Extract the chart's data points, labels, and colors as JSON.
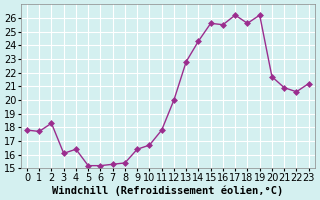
{
  "x": [
    0,
    1,
    2,
    3,
    4,
    5,
    6,
    7,
    8,
    9,
    10,
    11,
    12,
    13,
    14,
    15,
    16,
    17,
    18,
    19,
    20,
    21,
    22,
    23
  ],
  "y": [
    17.8,
    17.7,
    18.3,
    16.1,
    16.4,
    15.2,
    15.2,
    15.3,
    15.4,
    16.4,
    16.7,
    17.8,
    20.0,
    22.8,
    24.3,
    25.6,
    25.5,
    26.2,
    25.6,
    26.2,
    21.7,
    20.9,
    20.6,
    21.2
  ],
  "line_color": "#9b2d8e",
  "marker": "D",
  "marker_size": 3,
  "bg_color": "#d4f0f0",
  "grid_color": "#ffffff",
  "xlabel": "Windchill (Refroidissement éolien,°C)",
  "xlim": [
    -0.5,
    23.5
  ],
  "ylim": [
    15,
    27
  ],
  "yticks": [
    15,
    16,
    17,
    18,
    19,
    20,
    21,
    22,
    23,
    24,
    25,
    26
  ],
  "xticks": [
    0,
    1,
    2,
    3,
    4,
    5,
    6,
    7,
    8,
    9,
    10,
    11,
    12,
    13,
    14,
    15,
    16,
    17,
    18,
    19,
    20,
    21,
    22,
    23
  ],
  "xlabel_fontsize": 7.5,
  "tick_fontsize": 7
}
